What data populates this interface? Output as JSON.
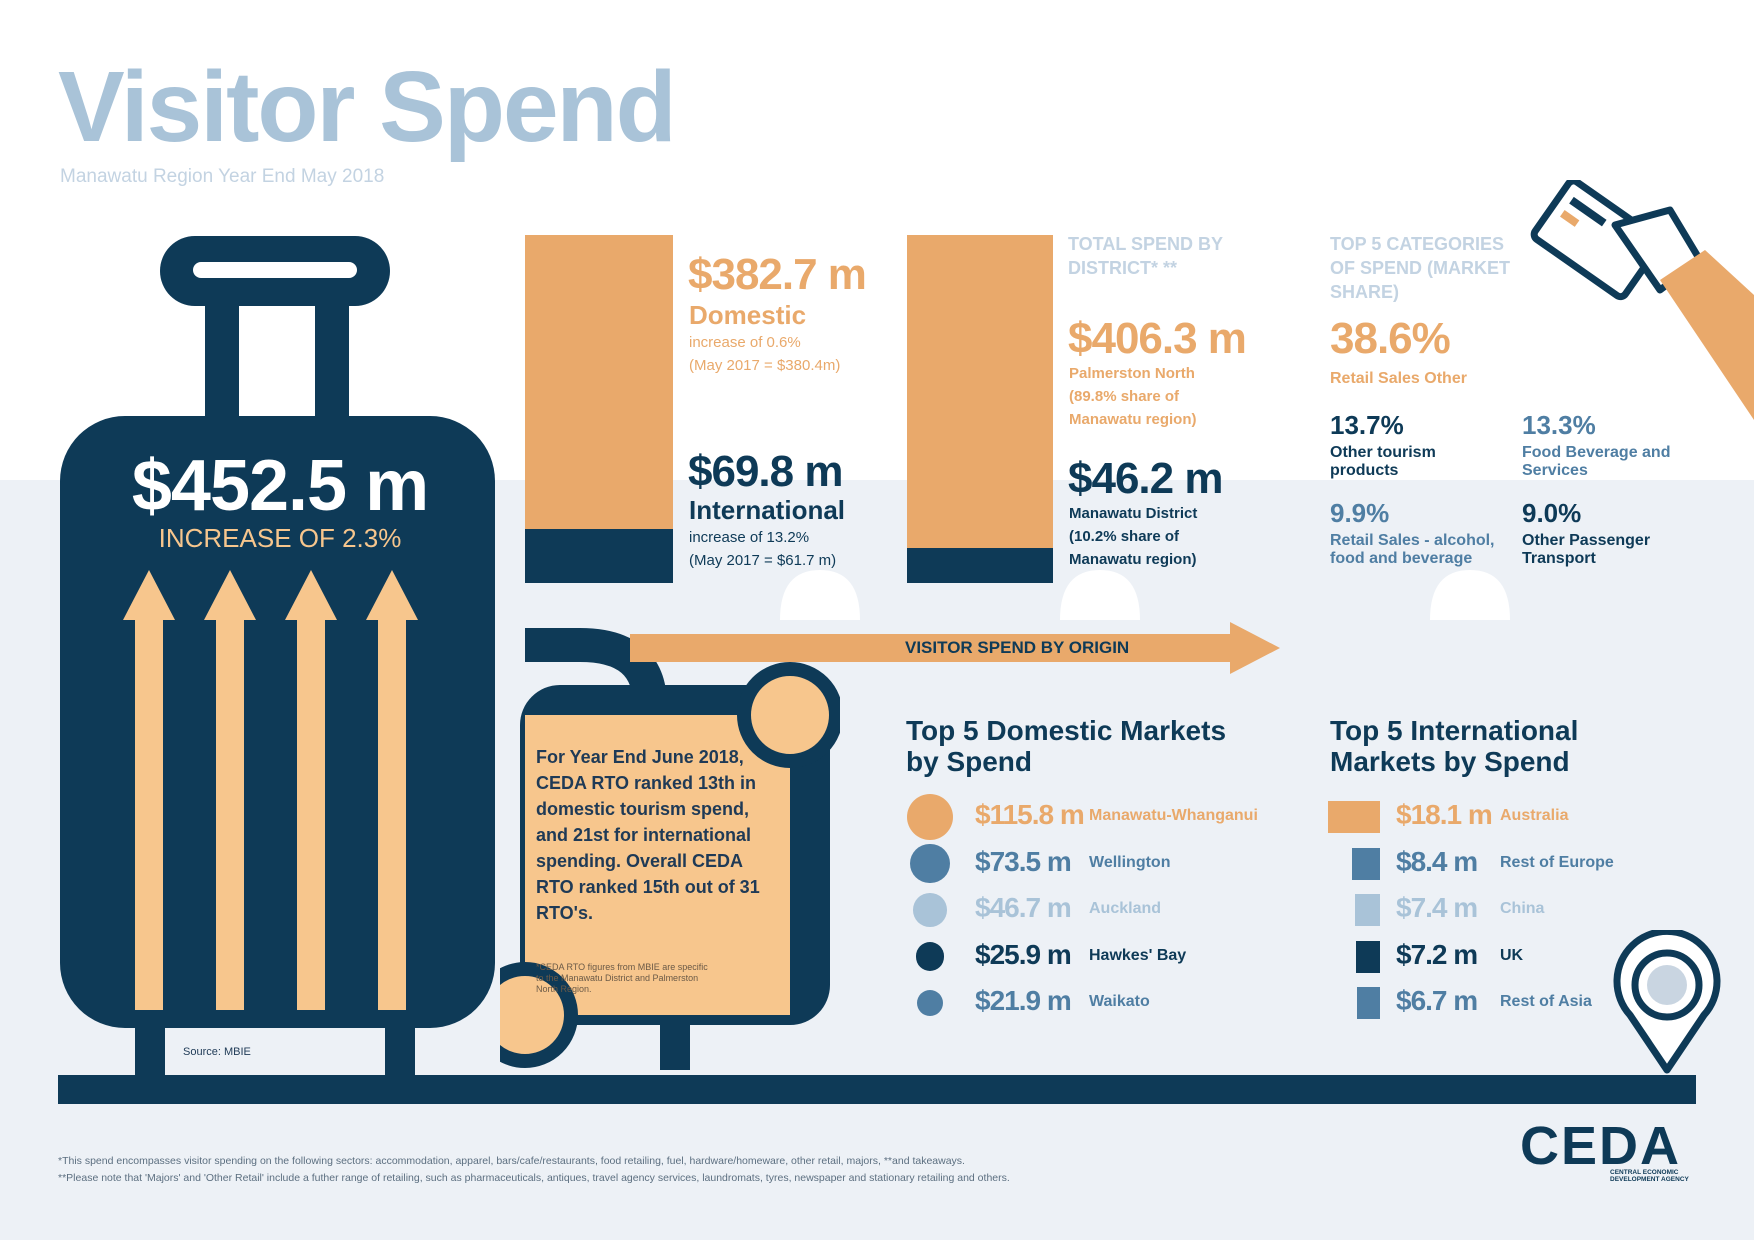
{
  "header": {
    "title": "Visitor Spend",
    "subtitle": "Manawatu Region Year End May 2018"
  },
  "total": {
    "value": "$452.5 m",
    "change": "INCREASE OF 2.3%",
    "source": "Source: MBIE"
  },
  "split": {
    "domestic": {
      "value": "$382.7 m",
      "label": "Domestic",
      "change": "increase of 0.6%",
      "prior": "(May 2017 = $380.4m)",
      "share": 0.846
    },
    "international": {
      "value": "$69.8 m",
      "label": "International",
      "change": "increase of 13.2%",
      "prior": "(May 2017 = $61.7 m)",
      "share": 0.154
    }
  },
  "district": {
    "heading": "TOTAL SPEND BY DISTRICT* **",
    "palmerston": {
      "value": "$406.3 m",
      "name": "Palmerston North",
      "share_text": "(89.8% share of Manawatu region)",
      "share": 0.898
    },
    "manawatu": {
      "value": "$46.2 m",
      "name": "Manawatu District",
      "share_text": "(10.2% share of Manawatu region)",
      "share": 0.102
    }
  },
  "categories": {
    "heading": "TOP 5 CATEGORIES OF SPEND (MARKET SHARE)",
    "top": {
      "pct": "38.6%",
      "label": "Retail Sales Other"
    },
    "items": [
      {
        "pct": "13.7%",
        "label": "Other tourism products"
      },
      {
        "pct": "13.3%",
        "label": "Food Beverage and Services"
      },
      {
        "pct": "9.9%",
        "label": "Retail Sales - alcohol, food and beverage"
      },
      {
        "pct": "9.0%",
        "label": "Other Passenger Transport"
      }
    ]
  },
  "origin_arrow": "VISITOR SPEND BY ORIGIN",
  "note": {
    "text": "For Year End June 2018, CEDA RTO ranked 13th in domestic tourism spend, and 21st for international spending. Overall CEDA RTO ranked 15th out of 31 RTO's.",
    "small": "*CEDA RTO figures from MBIE are specific to the Manawatu District and Palmerston North Region."
  },
  "domestic_markets": {
    "heading": "Top 5 Domestic Markets by Spend",
    "items": [
      {
        "value": "$115.8 m",
        "name": "Manawatu-Whanganui",
        "color": "#e9a96b"
      },
      {
        "value": "$73.5 m",
        "name": "Wellington",
        "color": "#4f7ea3"
      },
      {
        "value": "$46.7 m",
        "name": "Auckland",
        "color": "#a9c3d8"
      },
      {
        "value": "$25.9 m",
        "name": "Hawkes' Bay",
        "color": "#0e3a57"
      },
      {
        "value": "$21.9 m",
        "name": "Waikato",
        "color": "#4f7ea3"
      }
    ]
  },
  "international_markets": {
    "heading": "Top 5 International Markets by Spend",
    "items": [
      {
        "value": "$18.1 m",
        "name": "Australia",
        "color": "#e9a96b"
      },
      {
        "value": "$8.4 m",
        "name": "Rest of Europe",
        "color": "#4f7ea3"
      },
      {
        "value": "$7.4 m",
        "name": "China",
        "color": "#a9c3d8"
      },
      {
        "value": "$7.2 m",
        "name": "UK",
        "color": "#0e3a57"
      },
      {
        "value": "$6.7 m",
        "name": "Rest of Asia",
        "color": "#4f7ea3"
      }
    ]
  },
  "footnotes": [
    "*This spend encompasses visitor spending on the following sectors: accommodation, apparel, bars/cafe/restaurants, food retailing, fuel, hardware/homeware, other retail, majors, **and takeaways.",
    "**Please note that 'Majors' and 'Other Retail' include a futher range of retailing, such as pharmaceuticals, antiques, travel agency services, laundromats, tyres, newspaper and stationary retailing and others."
  ],
  "logo": {
    "name": "CEDA",
    "tagline": "CENTRAL ECONOMIC DEVELOPMENT AGENCY"
  },
  "colors": {
    "navy": "#0e3a57",
    "orange": "#e9a96b",
    "light_orange": "#f7c68d",
    "blue": "#4f7ea3",
    "light_blue": "#a9c3d8",
    "bg_cloud": "#edf1f6"
  }
}
